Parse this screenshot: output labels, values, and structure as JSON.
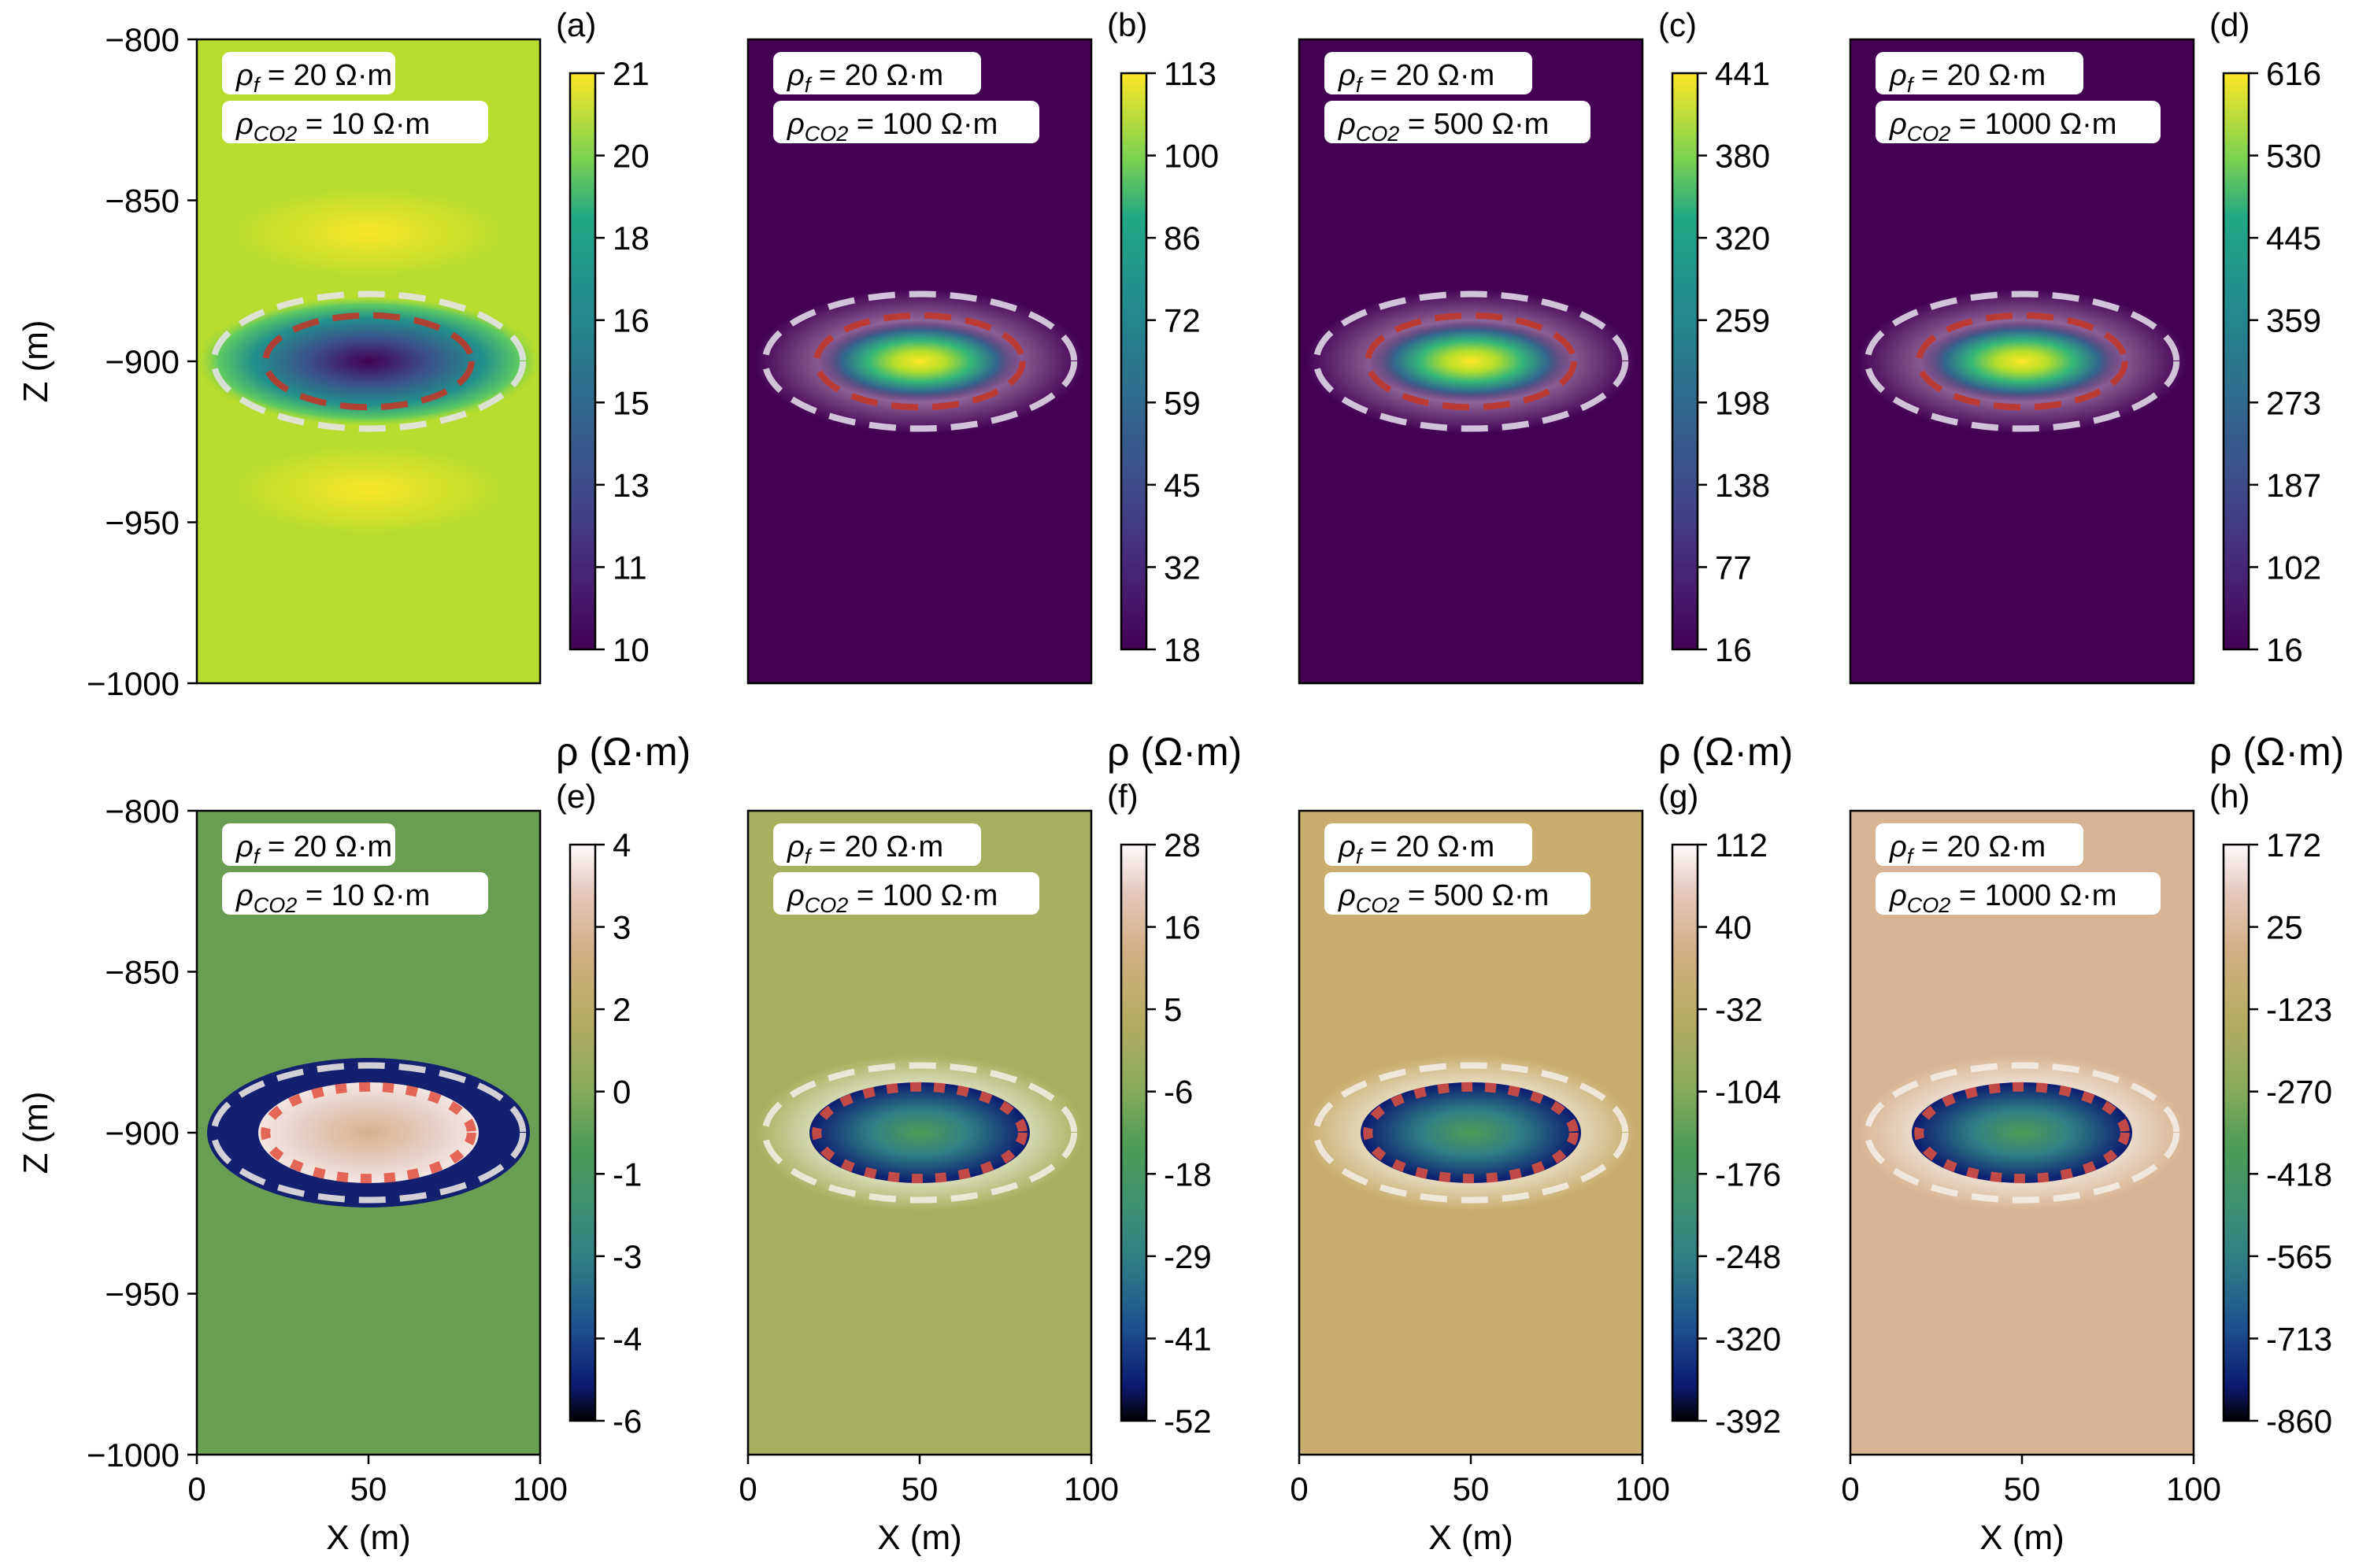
{
  "chart_data": [
    {
      "panel": "(a)",
      "type": "heatmap",
      "row": 0,
      "col": 0,
      "colormap": "viridis",
      "anomaly": "low",
      "rho_f": "20 Ω·m",
      "rho_co2": "10 Ω·m",
      "colorbar": {
        "ticks": [
          "21",
          "20",
          "18",
          "16",
          "15",
          "13",
          "11",
          "10"
        ],
        "label": "ρ (Ω·m)"
      },
      "xlim": [
        0,
        100
      ],
      "ylim": [
        -1000,
        -800
      ],
      "yticks": [
        "−800",
        "−850",
        "−900",
        "−950",
        "−1000"
      ],
      "ylabel": "Z (m)"
    },
    {
      "panel": "(b)",
      "type": "heatmap",
      "row": 0,
      "col": 1,
      "colormap": "viridis",
      "anomaly": "high",
      "rho_f": "20 Ω·m",
      "rho_co2": "100 Ω·m",
      "colorbar": {
        "ticks": [
          "113",
          "100",
          "86",
          "72",
          "59",
          "45",
          "32",
          "18"
        ],
        "label": "ρ (Ω·m)"
      },
      "xlim": [
        0,
        100
      ],
      "ylim": [
        -1000,
        -800
      ]
    },
    {
      "panel": "(c)",
      "type": "heatmap",
      "row": 0,
      "col": 2,
      "colormap": "viridis",
      "anomaly": "high",
      "rho_f": "20 Ω·m",
      "rho_co2": "500 Ω·m",
      "colorbar": {
        "ticks": [
          "441",
          "380",
          "320",
          "259",
          "198",
          "138",
          "77",
          "16"
        ],
        "label": "ρ (Ω·m)"
      },
      "xlim": [
        0,
        100
      ],
      "ylim": [
        -1000,
        -800
      ]
    },
    {
      "panel": "(d)",
      "type": "heatmap",
      "row": 0,
      "col": 3,
      "colormap": "viridis",
      "anomaly": "high",
      "rho_f": "20 Ω·m",
      "rho_co2": "1000 Ω·m",
      "colorbar": {
        "ticks": [
          "616",
          "530",
          "445",
          "359",
          "273",
          "187",
          "102",
          "16"
        ],
        "label": "ρ (Ω·m)"
      },
      "xlim": [
        0,
        100
      ],
      "ylim": [
        -1000,
        -800
      ]
    },
    {
      "panel": "(e)",
      "type": "heatmap",
      "row": 1,
      "col": 0,
      "colormap": "gist_earth",
      "level": 0.32,
      "rho_f": "20 Ω·m",
      "rho_co2": "10 Ω·m",
      "colorbar": {
        "ticks": [
          "4",
          "3",
          "2",
          "0",
          "-1",
          "-3",
          "-4",
          "-6"
        ]
      },
      "xlim": [
        0,
        100
      ],
      "ylim": [
        -1000,
        -800
      ],
      "yticks": [
        "−800",
        "−850",
        "−900",
        "−950",
        "−1000"
      ],
      "ylabel": "Z (m)",
      "xticks": [
        "0",
        "50",
        "100"
      ],
      "xlabel": "X (m)"
    },
    {
      "panel": "(f)",
      "type": "heatmap",
      "row": 1,
      "col": 1,
      "colormap": "gist_earth",
      "level": 0.58,
      "rho_f": "20 Ω·m",
      "rho_co2": "100 Ω·m",
      "colorbar": {
        "ticks": [
          "28",
          "16",
          "5",
          "-6",
          "-18",
          "-29",
          "-41",
          "-52"
        ]
      },
      "xlim": [
        0,
        100
      ],
      "ylim": [
        -1000,
        -800
      ],
      "xticks": [
        "0",
        "50",
        "100"
      ],
      "xlabel": "X (m)"
    },
    {
      "panel": "(g)",
      "type": "heatmap",
      "row": 1,
      "col": 2,
      "colormap": "gist_earth",
      "level": 0.71,
      "rho_f": "20 Ω·m",
      "rho_co2": "500 Ω·m",
      "colorbar": {
        "ticks": [
          "112",
          "40",
          "-32",
          "-104",
          "-176",
          "-248",
          "-320",
          "-392"
        ]
      },
      "xlim": [
        0,
        100
      ],
      "ylim": [
        -1000,
        -800
      ],
      "xticks": [
        "0",
        "50",
        "100"
      ],
      "xlabel": "X (m)"
    },
    {
      "panel": "(h)",
      "type": "heatmap",
      "row": 1,
      "col": 3,
      "colormap": "gist_earth",
      "level": 0.82,
      "rho_f": "20 Ω·m",
      "rho_co2": "1000 Ω·m",
      "colorbar": {
        "ticks": [
          "172",
          "25",
          "-123",
          "-270",
          "-418",
          "-565",
          "-713",
          "-860"
        ]
      },
      "xlim": [
        0,
        100
      ],
      "ylim": [
        -1000,
        -800
      ],
      "xticks": [
        "0",
        "50",
        "100"
      ],
      "xlabel": "X (m)"
    }
  ]
}
